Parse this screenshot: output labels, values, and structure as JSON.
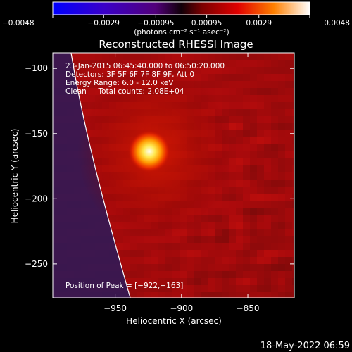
{
  "chart_data": {
    "type": "heatmap",
    "title": "Reconstructed RHESSI Image",
    "xlabel": "Heliocentric X (arcsec)",
    "ylabel": "Heliocentric Y (arcsec)",
    "xlim": [
      -997,
      -915
    ],
    "ylim": [
      -276,
      -88
    ],
    "xlim_true": [
      -997,
      -815
    ],
    "x_ticks": [
      -950,
      -900,
      -850
    ],
    "y_ticks": [
      -100,
      -150,
      -200,
      -250
    ],
    "x_tick_labels": [
      "−950",
      "−900",
      "−850"
    ],
    "y_tick_labels": [
      "−100",
      "−150",
      "−200",
      "−250"
    ],
    "colorbar": {
      "ticks": [
        -0.0048,
        -0.0029,
        -0.00095,
        0.00095,
        0.0029,
        0.0048
      ],
      "tick_labels": [
        "−0.0048",
        "−0.0029",
        "−0.00095",
        "0.00095",
        "0.0029",
        "0.0048"
      ],
      "unit_label": "(photons cm⁻² s⁻¹ asec⁻²)",
      "min": -0.0048,
      "max": 0.0048
    },
    "peak": {
      "x": -922,
      "y": -163
    },
    "annotations": [
      "23-Jan-2015 06:45:40.000 to 06:50:20.000",
      "Detectors: 3F 5F 6F 7F 8F 9F, Att 0",
      "Energy Range: 6.0 - 12.0 keV",
      "Clean     Total counts: 2.08E+04"
    ],
    "peak_label": "Position of Peak = [−922,−163]"
  },
  "timestamp": "18-May-2022 06:59"
}
